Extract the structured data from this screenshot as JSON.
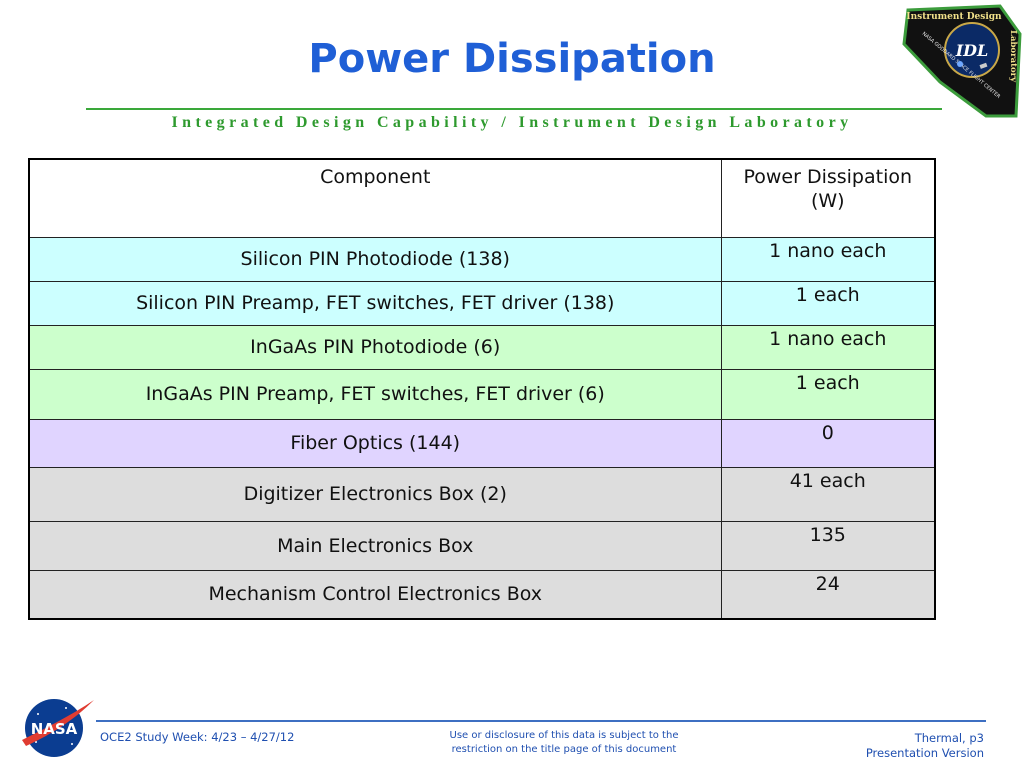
{
  "header": {
    "title": "Power Dissipation",
    "subtitle": "Integrated Design Capability / Instrument Design Laboratory"
  },
  "logo": {
    "top_text": "Instrument Design",
    "side_text": "Laboratory",
    "center_text": "IDL",
    "ring_text": "NASA GODDARD SPACE FLIGHT CENTER",
    "icon": "idl-badge-icon"
  },
  "table": {
    "headers": [
      "Component",
      "Power Dissipation (W)"
    ],
    "rows": [
      {
        "component": "Silicon PIN Photodiode (138)",
        "power": "1 nano each",
        "color": "#ccffff"
      },
      {
        "component": "Silicon PIN Preamp, FET switches, FET driver (138)",
        "power": "1 each",
        "color": "#ccffff"
      },
      {
        "component": "InGaAs PIN Photodiode (6)",
        "power": "1 nano each",
        "color": "#ccffcc"
      },
      {
        "component": "InGaAs PIN Preamp, FET switches, FET driver (6)",
        "power": "1 each",
        "color": "#ccffcc"
      },
      {
        "component": "Fiber Optics (144)",
        "power": "0",
        "color": "#e0d4ff"
      },
      {
        "component": "Digitizer Electronics Box (2)",
        "power": "41 each",
        "color": "#dddddd"
      },
      {
        "component": "Main Electronics Box",
        "power": "135",
        "color": "#dddddd"
      },
      {
        "component": "Mechanism Control Electronics Box",
        "power": "24",
        "color": "#dddddd"
      }
    ]
  },
  "footer": {
    "left": "OCE2 Study Week:  4/23 – 4/27/12",
    "center_line1": "Use or disclosure of this data is subject to the",
    "center_line2": "restriction on the title page of this document",
    "right_line1": "Thermal,  p3",
    "right_line2": "Presentation Version",
    "logo_text": "NASA",
    "logo_icon": "nasa-meatball-icon"
  },
  "colors": {
    "title": "#1f5fd6",
    "subtitle": "#2e9a2e",
    "rule_green": "#3aa83a",
    "footer_blue": "#1f4fb0"
  }
}
